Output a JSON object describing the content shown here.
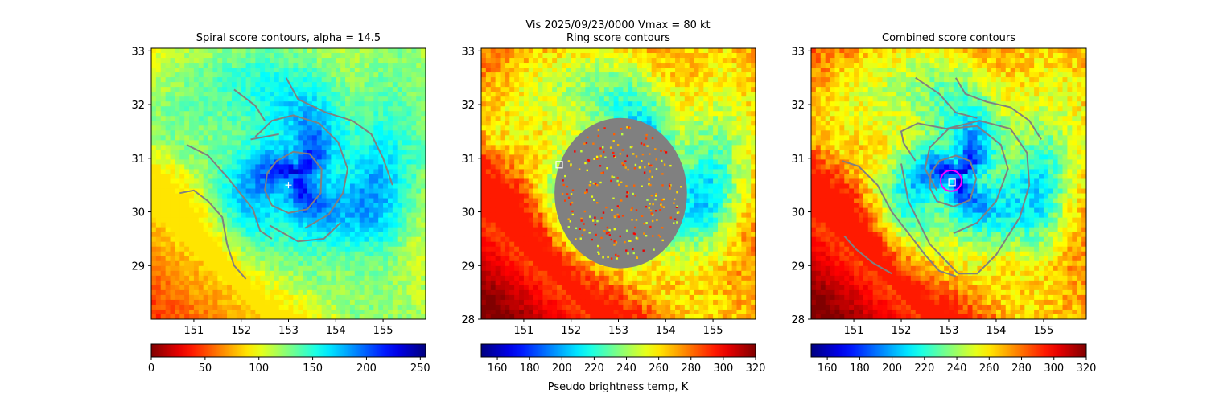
{
  "suptitle": "Vis  2025/09/23/0000    Vmax = 80 kt",
  "colorbar_label": "Pseudo brightness temp, K",
  "chart_data": [
    {
      "type": "heatmap",
      "title": "Spiral score contours, alpha = 14.5",
      "xlim": [
        150.1,
        155.9
      ],
      "ylim": [
        28.0,
        33.05
      ],
      "xticks": [
        151,
        152,
        153,
        154,
        155
      ],
      "yticks": [
        29,
        30,
        31,
        32,
        33
      ],
      "xtick_labels": [
        "151",
        "152",
        "153",
        "154",
        "155"
      ],
      "ytick_labels": [
        "29",
        "30",
        "31",
        "32",
        "33"
      ],
      "center": [
        153.2,
        30.7
      ],
      "colormap": "jet_r",
      "colorbar": {
        "min": 0,
        "max": 255,
        "ticks": [
          0,
          50,
          100,
          150,
          200,
          250
        ],
        "labels": [
          "0",
          "50",
          "100",
          "150",
          "200",
          "250"
        ]
      },
      "marker": {
        "type": "plus",
        "lon": 153.0,
        "lat": 30.5,
        "color": "#ffffff"
      },
      "contours": [
        [
          [
            152.55,
            30.72
          ],
          [
            152.75,
            30.95
          ],
          [
            153.1,
            31.12
          ],
          [
            153.45,
            31.08
          ],
          [
            153.7,
            30.8
          ],
          [
            153.68,
            30.35
          ],
          [
            153.4,
            30.05
          ],
          [
            153.0,
            29.98
          ],
          [
            152.65,
            30.12
          ],
          [
            152.5,
            30.4
          ],
          [
            152.55,
            30.72
          ]
        ],
        [
          [
            153.35,
            29.7
          ],
          [
            153.85,
            29.95
          ],
          [
            154.15,
            30.35
          ],
          [
            154.25,
            30.8
          ],
          [
            154.05,
            31.3
          ],
          [
            153.65,
            31.65
          ],
          [
            153.1,
            31.8
          ],
          [
            152.65,
            31.7
          ],
          [
            152.3,
            31.4
          ]
        ],
        [
          [
            152.6,
            29.75
          ],
          [
            153.2,
            29.45
          ],
          [
            153.75,
            29.5
          ],
          [
            154.1,
            29.8
          ]
        ],
        [
          [
            152.2,
            31.35
          ],
          [
            152.8,
            31.45
          ]
        ],
        [
          [
            152.95,
            32.5
          ],
          [
            153.2,
            32.1
          ],
          [
            153.8,
            31.85
          ],
          [
            154.35,
            31.7
          ],
          [
            154.75,
            31.45
          ],
          [
            155.0,
            31.0
          ],
          [
            155.2,
            30.5
          ]
        ],
        [
          [
            151.85,
            32.28
          ],
          [
            152.3,
            31.98
          ],
          [
            152.5,
            31.7
          ]
        ],
        [
          [
            150.85,
            31.25
          ],
          [
            151.3,
            31.05
          ],
          [
            151.75,
            30.6
          ],
          [
            152.25,
            30.05
          ],
          [
            152.4,
            29.65
          ],
          [
            152.65,
            29.5
          ]
        ],
        [
          [
            150.7,
            30.35
          ],
          [
            151.0,
            30.4
          ],
          [
            151.3,
            30.2
          ],
          [
            151.6,
            29.9
          ],
          [
            151.7,
            29.4
          ],
          [
            151.85,
            29.0
          ],
          [
            152.1,
            28.75
          ]
        ]
      ]
    },
    {
      "type": "heatmap",
      "title": "Ring score contours",
      "xlim": [
        150.1,
        155.9
      ],
      "ylim": [
        28.0,
        33.05
      ],
      "xticks": [
        151,
        152,
        153,
        154,
        155
      ],
      "yticks": [
        28,
        29,
        30,
        31,
        32,
        33
      ],
      "xtick_labels": [
        "151",
        "152",
        "153",
        "154",
        "155"
      ],
      "ytick_labels": [
        "28",
        "29",
        "30",
        "31",
        "32",
        "33"
      ],
      "center": [
        153.2,
        30.7
      ],
      "colormap": "jet",
      "colorbar": {
        "min": 150,
        "max": 320,
        "ticks": [
          160,
          180,
          200,
          220,
          240,
          260,
          280,
          300,
          320
        ],
        "labels": [
          "160",
          "180",
          "200",
          "220",
          "240",
          "260",
          "280",
          "300",
          "320"
        ]
      },
      "marker": {
        "type": "square",
        "lon": 151.75,
        "lat": 30.88,
        "color": "#ffffff"
      },
      "ring_region": {
        "lon": 153.05,
        "lat": 30.35,
        "rx_deg": 1.4,
        "ry_deg": 1.4
      }
    },
    {
      "type": "heatmap",
      "title": "Combined score contours",
      "xlim": [
        150.1,
        155.9
      ],
      "ylim": [
        28.0,
        33.05
      ],
      "xticks": [
        151,
        152,
        153,
        154,
        155
      ],
      "yticks": [
        28,
        29,
        30,
        31,
        32,
        33
      ],
      "xtick_labels": [
        "151",
        "152",
        "153",
        "154",
        "155"
      ],
      "ytick_labels": [
        "28",
        "29",
        "30",
        "31",
        "32",
        "33"
      ],
      "center": [
        153.2,
        30.7
      ],
      "colormap": "jet",
      "colorbar": {
        "min": 150,
        "max": 320,
        "ticks": [
          160,
          180,
          200,
          220,
          240,
          260,
          280,
          300,
          320
        ],
        "labels": [
          "160",
          "180",
          "200",
          "220",
          "240",
          "260",
          "280",
          "300",
          "320"
        ]
      },
      "marker": {
        "type": "square",
        "lon": 153.07,
        "lat": 30.55,
        "color": "#ffffff"
      },
      "circle": {
        "lon": 153.05,
        "lat": 30.58,
        "r_deg": 0.22,
        "color": "#ff00ff"
      },
      "contours": [
        [
          [
            152.62,
            30.72
          ],
          [
            152.8,
            30.95
          ],
          [
            153.15,
            31.05
          ],
          [
            153.45,
            30.95
          ],
          [
            153.58,
            30.62
          ],
          [
            153.45,
            30.22
          ],
          [
            153.1,
            30.1
          ],
          [
            152.75,
            30.2
          ],
          [
            152.6,
            30.45
          ],
          [
            152.62,
            30.72
          ]
        ],
        [
          [
            152.75,
            30.4
          ],
          [
            152.5,
            30.8
          ],
          [
            152.6,
            31.2
          ],
          [
            153.0,
            31.55
          ],
          [
            153.6,
            31.6
          ],
          [
            154.1,
            31.25
          ],
          [
            154.25,
            30.8
          ],
          [
            154.0,
            30.2
          ],
          [
            153.6,
            29.8
          ],
          [
            153.1,
            29.6
          ]
        ],
        [
          [
            152.05,
            31.28
          ],
          [
            152.0,
            31.5
          ],
          [
            152.35,
            31.65
          ],
          [
            152.95,
            31.55
          ],
          [
            153.65,
            31.7
          ],
          [
            154.3,
            31.55
          ],
          [
            154.65,
            31.1
          ],
          [
            154.7,
            30.5
          ],
          [
            154.5,
            29.9
          ],
          [
            154.0,
            29.2
          ],
          [
            153.6,
            28.85
          ],
          [
            153.2,
            28.85
          ]
        ],
        [
          [
            153.2,
            28.85
          ],
          [
            152.6,
            29.4
          ],
          [
            152.15,
            30.2
          ],
          [
            152.0,
            30.9
          ]
        ],
        [
          [
            152.3,
            32.5
          ],
          [
            152.8,
            32.2
          ],
          [
            153.15,
            31.85
          ],
          [
            153.6,
            31.75
          ]
        ],
        [
          [
            153.15,
            32.5
          ],
          [
            153.35,
            32.2
          ],
          [
            153.8,
            32.05
          ],
          [
            154.3,
            31.95
          ],
          [
            154.7,
            31.7
          ],
          [
            154.95,
            31.35
          ]
        ],
        [
          [
            150.75,
            30.95
          ],
          [
            151.1,
            30.85
          ],
          [
            151.5,
            30.5
          ],
          [
            151.8,
            30.0
          ],
          [
            152.2,
            29.55
          ],
          [
            152.5,
            29.2
          ],
          [
            152.8,
            28.9
          ],
          [
            153.15,
            28.8
          ]
        ],
        [
          [
            150.8,
            29.55
          ],
          [
            151.05,
            29.3
          ],
          [
            151.4,
            29.05
          ],
          [
            151.8,
            28.85
          ]
        ],
        [
          [
            152.05,
            31.28
          ],
          [
            152.3,
            30.95
          ]
        ]
      ]
    }
  ]
}
